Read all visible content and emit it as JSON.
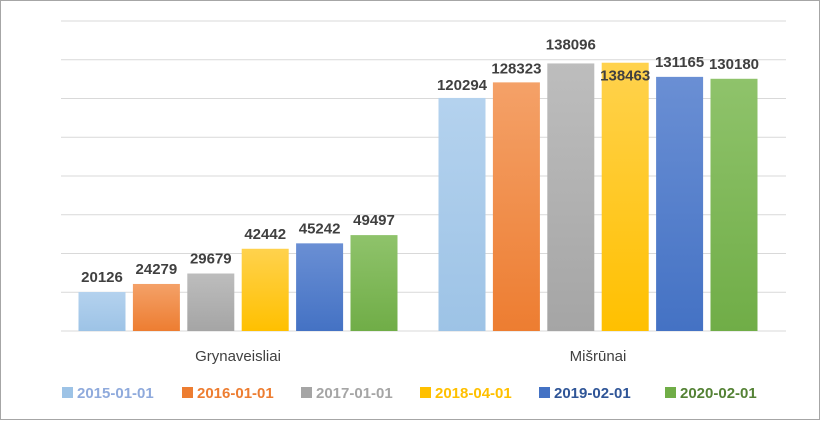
{
  "chart_data": {
    "type": "bar",
    "title": "",
    "xlabel": "",
    "ylabel": "",
    "categories": [
      "Grynaveisliai",
      "Mišrūnai"
    ],
    "ylim": [
      0,
      160000
    ],
    "grid": true,
    "legend_position": "bottom",
    "series": [
      {
        "name": "2015-01-01",
        "color": "#9dc3e6",
        "gradient_top": "#b4d2ee",
        "legend_color": "#8faadc",
        "values": [
          20126,
          120294
        ]
      },
      {
        "name": "2016-01-01",
        "color": "#ed7d31",
        "gradient_top": "#f4a168",
        "legend_color": "#ed7d31",
        "values": [
          24279,
          128323
        ]
      },
      {
        "name": "2017-01-01",
        "color": "#a5a5a5",
        "gradient_top": "#bdbdbd",
        "legend_color": "#a5a5a5",
        "values": [
          29679,
          138096
        ]
      },
      {
        "name": "2018-04-01",
        "color": "#ffc000",
        "gradient_top": "#ffd24d",
        "legend_color": "#ffc000",
        "values": [
          42442,
          138463
        ]
      },
      {
        "name": "2019-02-01",
        "color": "#4472c4",
        "gradient_top": "#6a8fd4",
        "legend_color": "#2f5597",
        "values": [
          45242,
          131165
        ]
      },
      {
        "name": "2020-02-01",
        "color": "#70ad47",
        "gradient_top": "#8fc36b",
        "legend_color": "#548235",
        "values": [
          49497,
          130180
        ]
      }
    ]
  }
}
